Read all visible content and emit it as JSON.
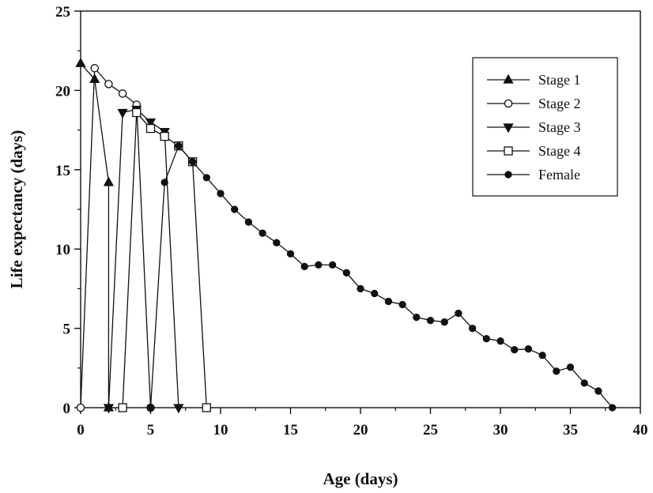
{
  "chart_data": {
    "type": "line",
    "title": "",
    "xlabel": "Age (days)",
    "ylabel": "Life expectancy (days)",
    "xlim": [
      0,
      40
    ],
    "ylim": [
      0,
      25
    ],
    "xticks": [
      0,
      5,
      10,
      15,
      20,
      25,
      30,
      35,
      40
    ],
    "yticks": [
      0,
      5,
      10,
      15,
      20,
      25
    ],
    "grid": false,
    "legend_position": "top-right",
    "series": [
      {
        "name": "Stage 1",
        "marker": "triangle-up",
        "filled": true,
        "x": [
          0,
          1,
          2,
          2
        ],
        "y": [
          21.7,
          20.7,
          14.2,
          0
        ]
      },
      {
        "name": "Stage 2",
        "marker": "circle",
        "filled": false,
        "x": [
          0,
          1,
          2,
          3,
          4,
          5
        ],
        "y": [
          0,
          21.4,
          20.4,
          19.8,
          19.1,
          0
        ]
      },
      {
        "name": "Stage 3",
        "marker": "triangle-down",
        "filled": true,
        "x": [
          2,
          3,
          4,
          5,
          6,
          7
        ],
        "y": [
          0,
          18.6,
          18.8,
          18.0,
          17.4,
          0
        ]
      },
      {
        "name": "Stage 4",
        "marker": "square",
        "filled": false,
        "x": [
          3,
          4,
          5,
          6,
          7,
          8,
          9
        ],
        "y": [
          0,
          18.6,
          17.6,
          17.1,
          16.5,
          15.5,
          0
        ]
      },
      {
        "name": "Female",
        "marker": "circle",
        "filled": true,
        "x": [
          5,
          6,
          7,
          8,
          9,
          10,
          11,
          12,
          13,
          14,
          15,
          16,
          17,
          18,
          19,
          20,
          21,
          22,
          23,
          24,
          25,
          26,
          27,
          28,
          29,
          30,
          31,
          32,
          33,
          34,
          35,
          36,
          37,
          38
        ],
        "y": [
          0,
          14.2,
          16.5,
          15.5,
          14.5,
          13.5,
          12.5,
          11.7,
          11.0,
          10.4,
          9.7,
          8.9,
          9.0,
          9.0,
          8.5,
          7.5,
          7.2,
          6.7,
          6.5,
          5.7,
          5.5,
          5.4,
          5.95,
          5.0,
          4.35,
          4.2,
          3.65,
          3.7,
          3.3,
          2.3,
          2.55,
          1.55,
          1.05,
          0
        ]
      }
    ]
  }
}
